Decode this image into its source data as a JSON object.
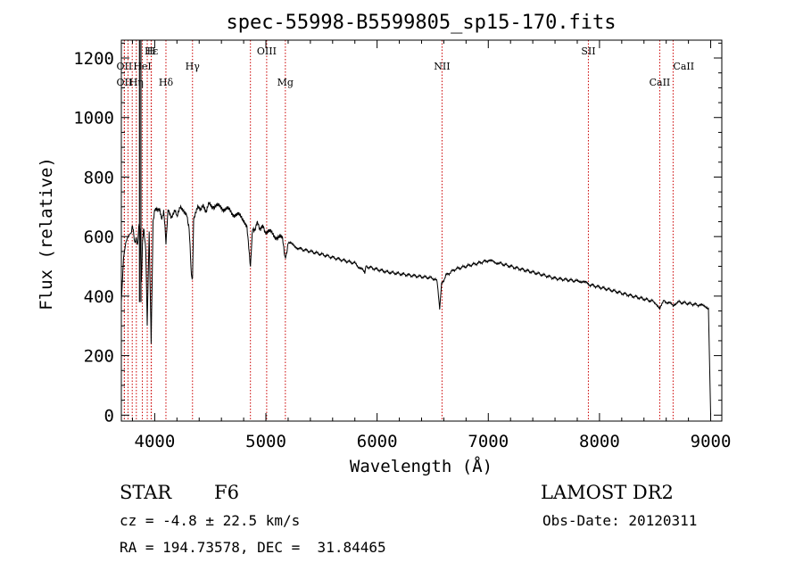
{
  "chart_data": {
    "type": "line",
    "title": "spec-55998-B5599805_sp15-170.fits",
    "xlabel": "Wavelength (Å)",
    "ylabel": "Flux (relative)",
    "xlim": [
      3700,
      9100
    ],
    "ylim": [
      -20,
      1260
    ],
    "xticks": [
      4000,
      5000,
      6000,
      7000,
      8000,
      9000
    ],
    "yticks": [
      0,
      200,
      400,
      600,
      800,
      1000,
      1200
    ],
    "line_color": "#000000",
    "marker_color": "#cc0000",
    "spectrum": {
      "x": [
        3700,
        3720,
        3740,
        3760,
        3780,
        3800,
        3820,
        3835,
        3845,
        3860,
        3870,
        3880,
        3889,
        3900,
        3920,
        3933,
        3950,
        3968,
        3985,
        4000,
        4020,
        4040,
        4060,
        4080,
        4101,
        4120,
        4150,
        4180,
        4200,
        4230,
        4260,
        4290,
        4310,
        4330,
        4340,
        4350,
        4380,
        4420,
        4460,
        4500,
        4550,
        4600,
        4650,
        4700,
        4750,
        4800,
        4830,
        4861,
        4880,
        4920,
        4960,
        5000,
        5050,
        5100,
        5150,
        5172,
        5200,
        5250,
        5300,
        5400,
        5500,
        5600,
        5700,
        5800,
        5890,
        5900,
        6000,
        6100,
        6200,
        6300,
        6400,
        6500,
        6540,
        6563,
        6580,
        6620,
        6700,
        6800,
        6900,
        7000,
        7050,
        7100,
        7200,
        7300,
        7400,
        7500,
        7600,
        7700,
        7800,
        7850,
        7900,
        8000,
        8100,
        8200,
        8300,
        8400,
        8500,
        8542,
        8580,
        8662,
        8700,
        8800,
        8900,
        8950,
        8980,
        9000
      ],
      "y": [
        380,
        530,
        580,
        600,
        610,
        630,
        580,
        600,
        560,
        640,
        600,
        450,
        560,
        620,
        560,
        300,
        620,
        250,
        640,
        680,
        700,
        690,
        660,
        690,
        580,
        700,
        670,
        690,
        660,
        700,
        690,
        680,
        620,
        470,
        450,
        660,
        690,
        700,
        690,
        710,
        700,
        700,
        690,
        680,
        670,
        660,
        640,
        490,
        620,
        640,
        630,
        620,
        610,
        600,
        590,
        520,
        580,
        570,
        560,
        550,
        540,
        530,
        520,
        510,
        480,
        500,
        490,
        480,
        475,
        470,
        465,
        460,
        450,
        360,
        440,
        470,
        490,
        500,
        510,
        520,
        515,
        510,
        500,
        490,
        480,
        470,
        460,
        455,
        450,
        450,
        440,
        430,
        420,
        410,
        400,
        390,
        380,
        355,
        385,
        370,
        380,
        375,
        370,
        365,
        360,
        0
      ]
    },
    "line_markers": [
      {
        "name": "Hε",
        "x": 3970,
        "row": 1
      },
      {
        "name": "H",
        "x": 3968,
        "row": 1
      },
      {
        "name": "OII",
        "x": 3727,
        "row": 2
      },
      {
        "name": "HeI",
        "x": 3889,
        "row": 2
      },
      {
        "name": "Hγ",
        "x": 4340,
        "row": 2
      },
      {
        "name": "OIII",
        "x": 5007,
        "row": 1
      },
      {
        "name": "NII",
        "x": 6584,
        "row": 2
      },
      {
        "name": "SII",
        "x": 7900,
        "row": 1
      },
      {
        "name": "CaII",
        "x": 8662,
        "row": 2
      },
      {
        "name": "OII",
        "x": 3727,
        "row": 3
      },
      {
        "name": "Hη",
        "x": 3835,
        "row": 3
      },
      {
        "name": "Hδ",
        "x": 4101,
        "row": 3
      },
      {
        "name": "Mg",
        "x": 5175,
        "row": 3
      },
      {
        "name": "CaII",
        "x": 8542,
        "row": 3
      }
    ],
    "extra_marker_lines": [
      3760,
      3798,
      3933,
      4861
    ]
  },
  "footer": {
    "object_class": "STAR",
    "subclass": "F6",
    "cz": "cz = -4.8 ± 22.5 km/s",
    "coords": "RA = 194.73578, DEC =  31.84465",
    "survey": "LAMOST DR2",
    "obs_date": "Obs-Date: 20120311"
  }
}
